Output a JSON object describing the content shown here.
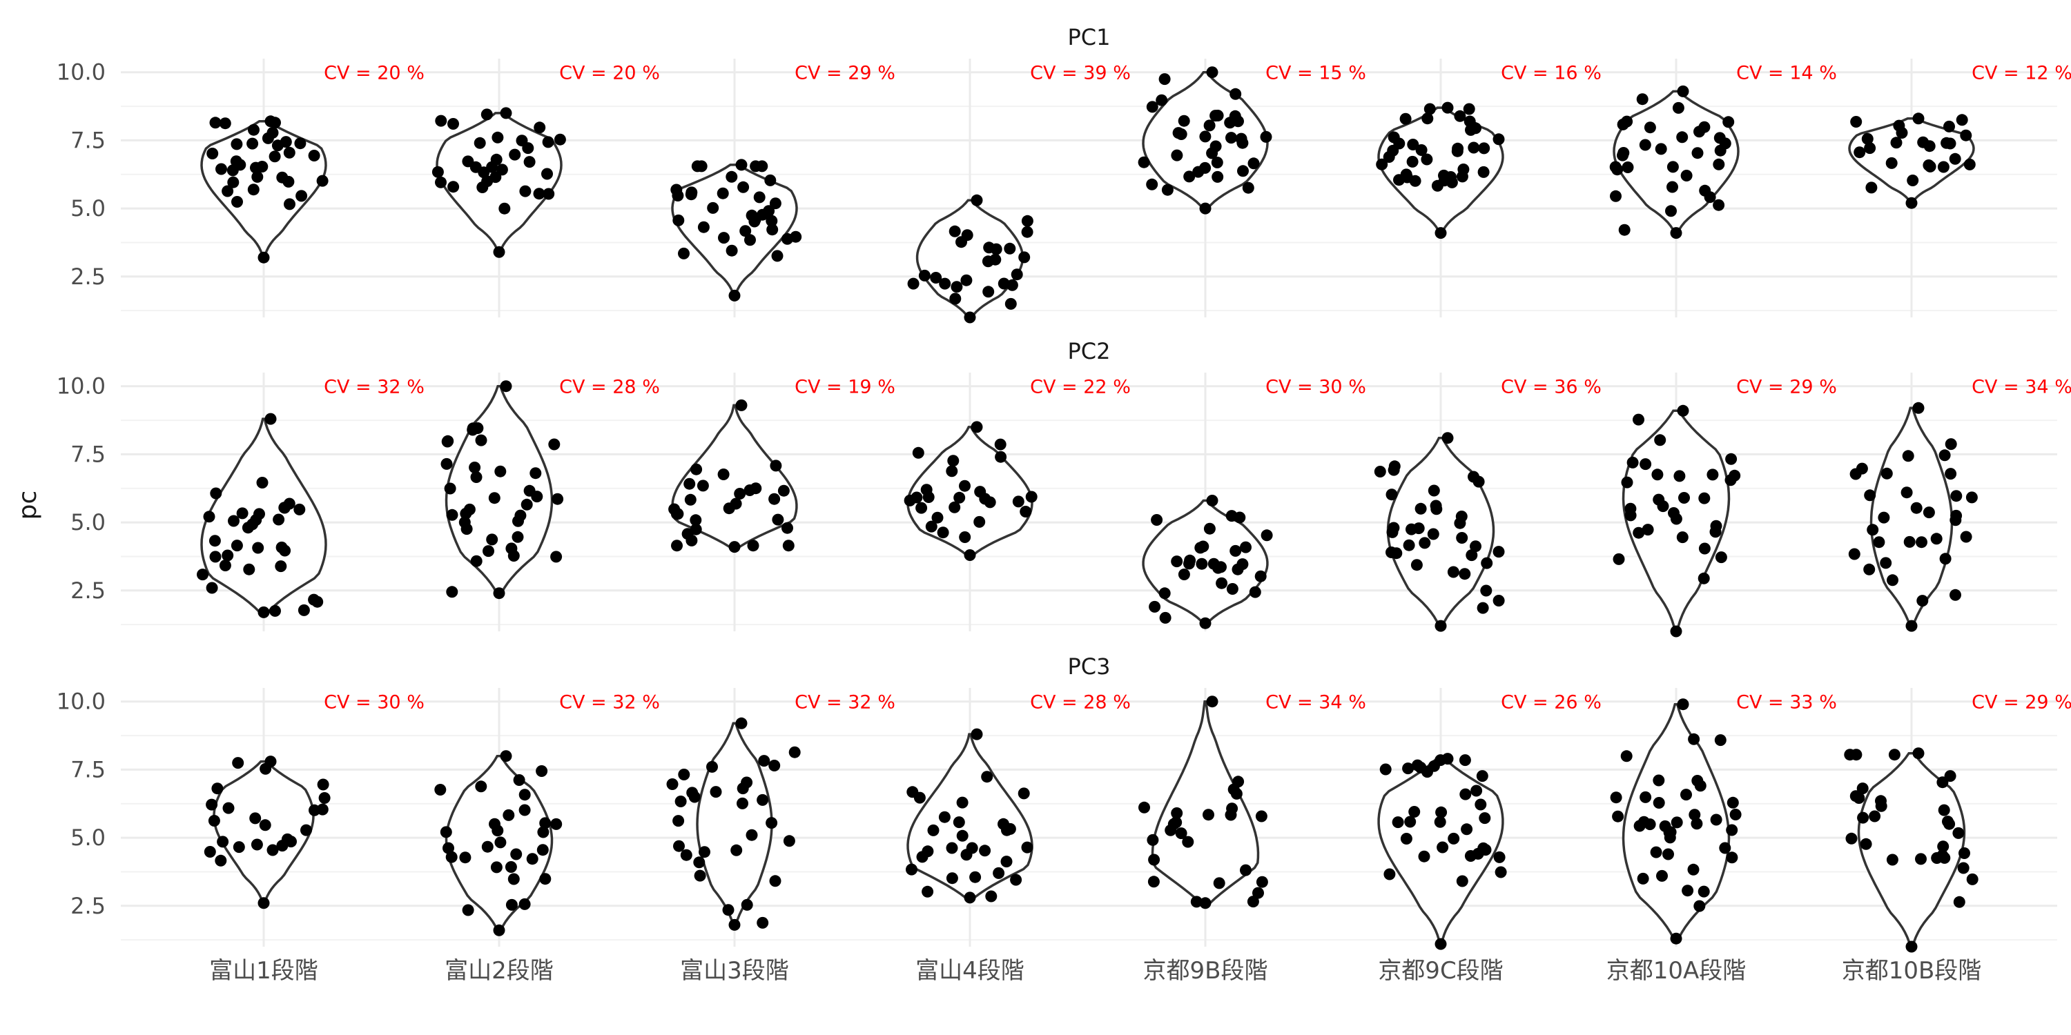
{
  "chart_data": {
    "type": "violin",
    "ylabel": "pc",
    "ylim": [
      1,
      10.5
    ],
    "yticks": [
      "2.5",
      "5.0",
      "7.5",
      "10.0"
    ],
    "grid": true,
    "categories": [
      "富山1段階",
      "富山2段階",
      "富山3段階",
      "富山4段階",
      "京都9B段階",
      "京都9C段階",
      "京都10A段階",
      "京都10B段階"
    ],
    "colors": {
      "cv_label": "#ff0000",
      "points": "#000000",
      "violin_outline": "#333333",
      "grid": "#ebebeb"
    },
    "panels": [
      {
        "title": "PC1",
        "cv": [
          "CV =  20 %",
          "CV =  20 %",
          "CV =  29 %",
          "CV =  39 %",
          "CV =  15 %",
          "CV =  16 %",
          "CV =  14 %",
          "CV =  12 %"
        ],
        "ranges": [
          [
            3.2,
            8.2
          ],
          [
            3.4,
            8.5
          ],
          [
            1.8,
            6.6
          ],
          [
            1.0,
            5.3
          ],
          [
            5.0,
            10.0
          ],
          [
            4.1,
            8.7
          ],
          [
            4.1,
            9.3
          ],
          [
            5.2,
            8.3
          ]
        ],
        "medians": [
          6.6,
          6.6,
          5.0,
          3.2,
          7.4,
          6.9,
          7.1,
          7.2
        ],
        "widths": [
          1.0,
          1.0,
          1.0,
          0.85,
          1.0,
          1.0,
          1.0,
          1.0
        ]
      },
      {
        "title": "PC2",
        "cv": [
          "CV =  32 %",
          "CV =  28 %",
          "CV =  19 %",
          "CV =  22 %",
          "CV =  30 %",
          "CV =  36 %",
          "CV =  29 %",
          "CV =  34 %"
        ],
        "ranges": [
          [
            1.7,
            8.8
          ],
          [
            2.4,
            10.0
          ],
          [
            4.1,
            9.3
          ],
          [
            3.8,
            8.5
          ],
          [
            1.3,
            5.8
          ],
          [
            1.2,
            8.1
          ],
          [
            1.0,
            9.1
          ],
          [
            1.2,
            9.2
          ]
        ],
        "medians": [
          4.2,
          5.8,
          5.6,
          5.7,
          3.5,
          4.7,
          5.9,
          5.0
        ],
        "widths": [
          1.0,
          0.85,
          1.0,
          1.0,
          1.0,
          0.85,
          0.85,
          0.65
        ]
      },
      {
        "title": "PC3",
        "cv": [
          "CV =  30 %",
          "CV =  32 %",
          "CV =  32 %",
          "CV =  28 %",
          "CV =  34 %",
          "CV =  26 %",
          "CV =  33 %",
          "CV =  29 %"
        ],
        "ranges": [
          [
            2.6,
            7.8
          ],
          [
            1.6,
            8.0
          ],
          [
            1.8,
            9.2
          ],
          [
            2.8,
            8.8
          ],
          [
            2.6,
            10.0
          ],
          [
            1.1,
            7.9
          ],
          [
            1.3,
            9.9
          ],
          [
            1.0,
            8.1
          ]
        ],
        "medians": [
          5.8,
          4.9,
          5.5,
          4.7,
          4.4,
          5.6,
          5.0,
          5.2
        ],
        "widths": [
          0.8,
          0.85,
          0.6,
          1.0,
          0.85,
          1.0,
          0.85,
          0.85
        ]
      }
    ]
  }
}
